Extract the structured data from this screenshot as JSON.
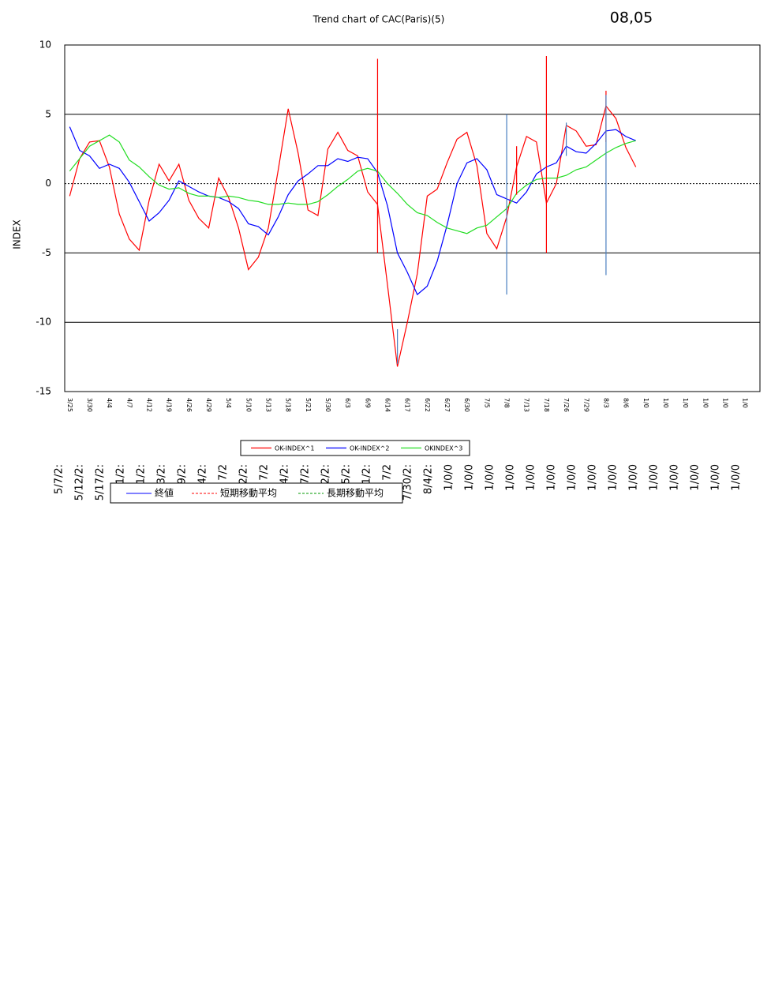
{
  "chart_data": {
    "type": "line",
    "title": "Trend chart of CAC(Paris)(5)",
    "subtitle": "08,05",
    "y_label": "INDEX",
    "ylim": [
      -15,
      10
    ],
    "yticks": [
      -15,
      -10,
      -5,
      0,
      5,
      10
    ],
    "grid": true,
    "categories": [
      "3/25",
      null,
      "3/30",
      null,
      "4/4",
      null,
      "4/7",
      null,
      "4/12",
      null,
      "4/19",
      null,
      "4/26",
      null,
      "4/29",
      null,
      "5/4",
      null,
      "5/10",
      null,
      "5/13",
      null,
      "5/18",
      null,
      "5/21",
      null,
      "5/30",
      null,
      "6/3",
      null,
      "6/9",
      null,
      "6/14",
      null,
      "6/17",
      null,
      "6/22",
      null,
      "6/27",
      null,
      "6/30",
      null,
      "7/5",
      null,
      "7/8",
      null,
      "7/13",
      null,
      "7/18",
      null,
      "7/26",
      null,
      "7/29",
      null,
      "8/3",
      null,
      "8/6",
      null,
      "1/0",
      null,
      "1/0",
      null,
      "1/0",
      null,
      "1/0",
      null,
      "1/0",
      null,
      "1/0",
      null
    ],
    "series": [
      {
        "name": "OK-INDEX^1",
        "color": "#ff0000",
        "values": [
          -0.9,
          1.8,
          3.0,
          3.1,
          1.2,
          -2.2,
          -4.0,
          -4.8,
          -1.2,
          1.4,
          0.2,
          1.4,
          -1.2,
          -2.5,
          -3.2,
          0.4,
          -1.0,
          -3.2,
          -6.2,
          -5.3,
          -3.2,
          1.0,
          5.4,
          2.2,
          -1.9,
          -2.3,
          2.5,
          3.7,
          2.4,
          2.0,
          -0.6,
          -1.5,
          -7.3,
          -13.2,
          -10.0,
          -6.5,
          -0.9,
          -0.4,
          1.5,
          3.2,
          3.7,
          1.3,
          -3.6,
          -4.7,
          -2.4,
          1.2,
          3.4,
          3.0,
          -1.4,
          0.0,
          4.2,
          3.8,
          2.7,
          2.8,
          5.6,
          4.7,
          2.6,
          1.2,
          null,
          null,
          null,
          null,
          null,
          null,
          null,
          null,
          null,
          null,
          null,
          null
        ]
      },
      {
        "name": "OK-INDEX^2",
        "color": "#0000ff",
        "values": [
          4.1,
          2.4,
          2.0,
          1.1,
          1.4,
          1.1,
          0.1,
          -1.3,
          -2.7,
          -2.1,
          -1.2,
          0.2,
          -0.2,
          -0.6,
          -0.9,
          -1.0,
          -1.3,
          -1.8,
          -2.9,
          -3.1,
          -3.7,
          -2.4,
          -0.8,
          0.2,
          0.7,
          1.3,
          1.3,
          1.8,
          1.6,
          1.9,
          1.8,
          0.8,
          -1.6,
          -5.0,
          -6.4,
          -8.0,
          -7.4,
          -5.6,
          -3.0,
          0.0,
          1.5,
          1.8,
          1.0,
          -0.8,
          -1.1,
          -1.4,
          -0.6,
          0.7,
          1.2,
          1.5,
          2.7,
          2.3,
          2.2,
          2.9,
          3.8,
          3.9,
          3.4,
          3.1,
          null,
          null,
          null,
          null,
          null,
          null,
          null,
          null,
          null,
          null,
          null,
          null
        ]
      },
      {
        "name": "OKINDEX^3",
        "color": "#22dd22",
        "values": [
          0.9,
          1.8,
          2.7,
          3.1,
          3.5,
          3.0,
          1.7,
          1.2,
          0.5,
          -0.1,
          -0.4,
          -0.3,
          -0.7,
          -0.9,
          -0.9,
          -1.0,
          -0.9,
          -1.0,
          -1.2,
          -1.3,
          -1.5,
          -1.5,
          -1.4,
          -1.5,
          -1.5,
          -1.3,
          -0.8,
          -0.2,
          0.3,
          0.9,
          1.1,
          0.9,
          0.0,
          -0.7,
          -1.5,
          -2.1,
          -2.3,
          -2.8,
          -3.2,
          -3.4,
          -3.6,
          -3.2,
          -3.0,
          -2.4,
          -1.8,
          -0.7,
          -0.1,
          0.3,
          0.4,
          0.4,
          0.6,
          1.0,
          1.2,
          1.7,
          2.2,
          2.6,
          2.9,
          3.1,
          null,
          null,
          null,
          null,
          null,
          null,
          null,
          null,
          null,
          null,
          null,
          null
        ]
      }
    ],
    "spikes": [
      {
        "at": 31,
        "from": 9.0,
        "to": -5.0,
        "color": "#ff0000"
      },
      {
        "at": 48,
        "from": 9.2,
        "to": -5.0,
        "color": "#ff0000"
      },
      {
        "at": 45,
        "from": 2.7,
        "to": -0.8,
        "color": "#ff0000"
      },
      {
        "at": 54,
        "from": 6.7,
        "to": 3.0,
        "color": "#ff0000"
      },
      {
        "at": 44,
        "from": 5.0,
        "to": -8.0,
        "color": "#4a7fc0"
      },
      {
        "at": 33,
        "from": -10.5,
        "to": -13.0,
        "color": "#4a7fc0"
      },
      {
        "at": 50,
        "from": 4.4,
        "to": 2.0,
        "color": "#4a7fc0"
      },
      {
        "at": 54,
        "from": 6.4,
        "to": -6.6,
        "color": "#4a7fc0"
      }
    ]
  },
  "overlay": {
    "labels": [
      "5/7/2:",
      "5/12/2:",
      "5/17/2:",
      "1/2:",
      "1/2:",
      "3/2:",
      "9/2:",
      "4/2:",
      "7/2",
      "2/2:",
      "7/2",
      "4/2:",
      "7/2:",
      "2/2:",
      "5/2:",
      "1/2:",
      "7/2",
      "7/30/2:",
      "8/4/2:",
      "1/0/0",
      "1/0/0",
      "1/0/0",
      "1/0/0",
      "1/0/0",
      "1/0/0",
      "1/0/0",
      "1/0/0",
      "1/0/0",
      "1/0/0",
      "1/0/0",
      "1/0/0",
      "1/0/0",
      "1/0/0",
      "1/0/0"
    ],
    "legend": [
      {
        "name": "終値",
        "color": "#0000ff",
        "dash": false
      },
      {
        "name": "短期移動平均",
        "color": "#ff0000",
        "dash": true
      },
      {
        "name": "長期移動平均",
        "color": "#009900",
        "dash": true
      }
    ]
  }
}
